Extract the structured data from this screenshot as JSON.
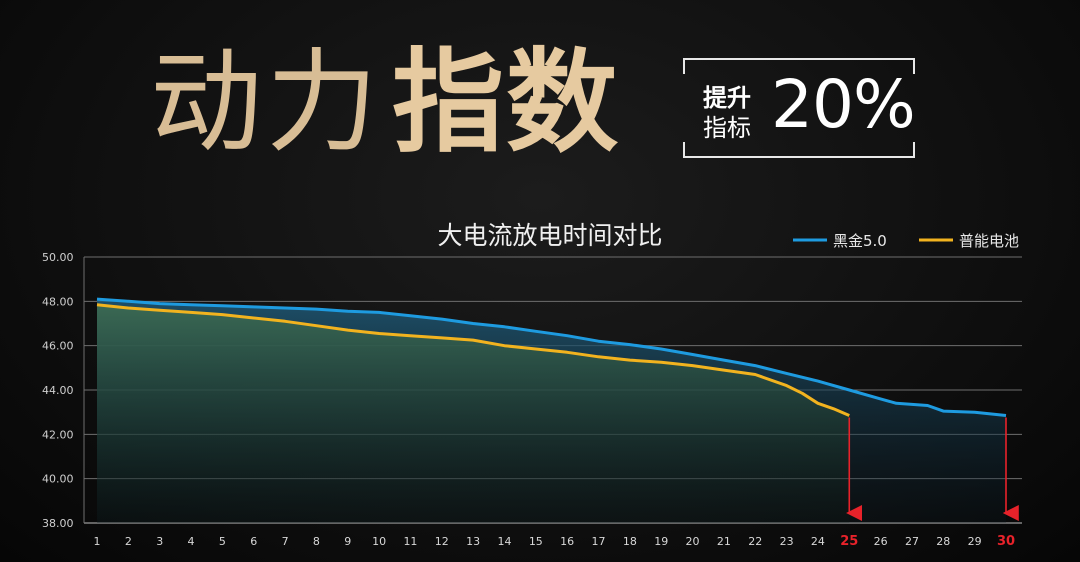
{
  "headline": {
    "light_text": "动力",
    "bold_text": "指数",
    "badge_line1": "提升",
    "badge_line2": "指标",
    "badge_value": "20%"
  },
  "colors": {
    "series_blue": "#1e9be0",
    "series_yellow": "#f2b31f",
    "end_marker_red": "#e8222a",
    "title_gold": "#e6caa0"
  },
  "chart_data": {
    "type": "line",
    "title": "大电流放电时间对比",
    "ylim": [
      38,
      50
    ],
    "y_ticks": [
      "38.00",
      "40.00",
      "42.00",
      "44.00",
      "46.00",
      "48.00",
      "50.00"
    ],
    "x": [
      1,
      2,
      3,
      4,
      5,
      6,
      7,
      8,
      9,
      10,
      11,
      12,
      13,
      14,
      15,
      16,
      17,
      18,
      19,
      20,
      21,
      22,
      23,
      24,
      25,
      26,
      27,
      28,
      29,
      30
    ],
    "x_tick_labels": [
      "1",
      "2",
      "3",
      "4",
      "5",
      "6",
      "7",
      "8",
      "9",
      "10",
      "11",
      "12",
      "13",
      "14",
      "15",
      "16",
      "17",
      "18",
      "19",
      "20",
      "21",
      "22",
      "23",
      "24",
      "25",
      "26",
      "27",
      "28",
      "29",
      "30"
    ],
    "highlight_ticks": [
      "25",
      "30"
    ],
    "legend_position": "top-right",
    "grid": true,
    "series": [
      {
        "name": "黑金5.0",
        "color": "#1e9be0",
        "x": [
          1,
          2,
          3,
          4,
          5,
          6,
          7,
          8,
          9,
          10,
          11,
          12,
          13,
          14,
          15,
          16,
          17,
          18,
          19,
          20,
          21,
          22,
          23,
          24,
          25,
          26,
          26.5,
          27,
          27.5,
          28,
          29,
          30
        ],
        "values": [
          48.1,
          48.0,
          47.9,
          47.85,
          47.8,
          47.75,
          47.7,
          47.65,
          47.55,
          47.5,
          47.35,
          47.2,
          47.0,
          46.85,
          46.65,
          46.45,
          46.2,
          46.05,
          45.85,
          45.6,
          45.35,
          45.1,
          44.75,
          44.4,
          44.0,
          43.6,
          43.4,
          43.35,
          43.3,
          43.05,
          43.0,
          42.85
        ]
      },
      {
        "name": "普能电池",
        "color": "#f2b31f",
        "x": [
          1,
          2,
          3,
          4,
          5,
          6,
          7,
          8,
          9,
          10,
          11,
          12,
          13,
          14,
          15,
          16,
          17,
          18,
          19,
          20,
          21,
          22,
          23,
          23.5,
          24,
          24.5,
          25
        ],
        "values": [
          47.85,
          47.7,
          47.6,
          47.5,
          47.4,
          47.25,
          47.1,
          46.9,
          46.7,
          46.55,
          46.45,
          46.35,
          46.25,
          46.0,
          45.85,
          45.7,
          45.5,
          45.35,
          45.25,
          45.1,
          44.9,
          44.7,
          44.2,
          43.85,
          43.4,
          43.15,
          42.85
        ]
      }
    ]
  }
}
